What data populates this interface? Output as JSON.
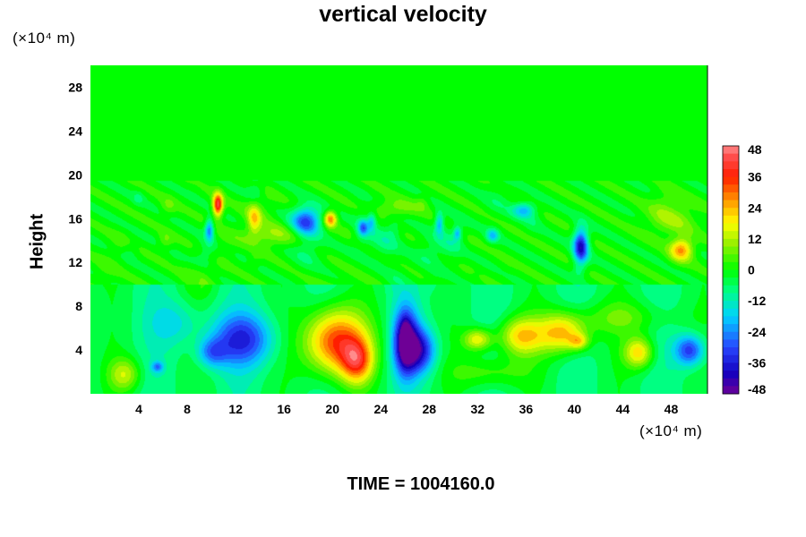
{
  "chart_data": {
    "type": "heatmap",
    "title": "vertical velocity",
    "ylabel": "Height",
    "xlabel": "",
    "x_unit_label": "(×10⁴ m)",
    "y_unit_label": "(×10⁴ m)",
    "footer": "TIME = 1004160.0",
    "xlim": [
      0,
      51
    ],
    "ylim": [
      0,
      30
    ],
    "x_ticks": [
      4,
      8,
      12,
      16,
      20,
      24,
      28,
      32,
      36,
      40,
      44,
      48
    ],
    "y_ticks": [
      4,
      8,
      12,
      16,
      20,
      24,
      28
    ],
    "colorbar": {
      "min": -48,
      "max": 48,
      "labels": [
        48,
        36,
        24,
        12,
        0,
        -12,
        -24,
        -36,
        -48
      ],
      "placement": "right"
    },
    "features": [
      {
        "x": 2.8,
        "y": 1.8,
        "rx": 1.3,
        "ry": 1.5,
        "value": 18
      },
      {
        "x": 5.5,
        "y": 2.5,
        "rx": 0.5,
        "ry": 0.5,
        "value": -18
      },
      {
        "x": 12.5,
        "y": 5.0,
        "rx": 2.6,
        "ry": 2.4,
        "value": -27
      },
      {
        "x": 10.0,
        "y": 3.8,
        "rx": 1.2,
        "ry": 1.3,
        "value": -18
      },
      {
        "x": 20.2,
        "y": 4.8,
        "rx": 2.5,
        "ry": 3.0,
        "value": 42
      },
      {
        "x": 22.0,
        "y": 3.0,
        "rx": 1.3,
        "ry": 2.0,
        "value": 30
      },
      {
        "x": 26.0,
        "y": 4.8,
        "rx": 1.0,
        "ry": 3.0,
        "value": -40
      },
      {
        "x": 26.0,
        "y": 5.0,
        "rx": 0.35,
        "ry": 1.5,
        "value": -20
      },
      {
        "x": 27.2,
        "y": 4.0,
        "rx": 1.3,
        "ry": 2.0,
        "value": -30
      },
      {
        "x": 32.0,
        "y": 5.0,
        "rx": 1.2,
        "ry": 1.0,
        "value": 24
      },
      {
        "x": 35.5,
        "y": 5.3,
        "rx": 1.8,
        "ry": 1.7,
        "value": 26
      },
      {
        "x": 39.0,
        "y": 5.6,
        "rx": 2.0,
        "ry": 1.8,
        "value": 30
      },
      {
        "x": 40.3,
        "y": 4.8,
        "rx": 0.8,
        "ry": 0.7,
        "value": 18
      },
      {
        "x": 45.3,
        "y": 3.8,
        "rx": 1.2,
        "ry": 1.4,
        "value": 26
      },
      {
        "x": 49.5,
        "y": 4.0,
        "rx": 1.2,
        "ry": 1.4,
        "value": -28
      },
      {
        "x": 44.0,
        "y": 7.0,
        "rx": 4.0,
        "ry": 1.5,
        "value": 10
      },
      {
        "x": 33.0,
        "y": 2.0,
        "rx": 3.0,
        "ry": 1.5,
        "value": 12
      },
      {
        "x": 7.0,
        "y": 6.5,
        "rx": 2.0,
        "ry": 2.0,
        "value": -10
      },
      {
        "x": 10.5,
        "y": 17.3,
        "rx": 0.4,
        "ry": 1.0,
        "value": 44
      },
      {
        "x": 9.8,
        "y": 15.0,
        "rx": 0.35,
        "ry": 1.0,
        "value": -25
      },
      {
        "x": 13.5,
        "y": 16.0,
        "rx": 0.5,
        "ry": 1.2,
        "value": 18
      },
      {
        "x": 17.8,
        "y": 15.8,
        "rx": 1.2,
        "ry": 1.3,
        "value": -32
      },
      {
        "x": 19.8,
        "y": 16.0,
        "rx": 0.5,
        "ry": 0.7,
        "value": 30
      },
      {
        "x": 22.5,
        "y": 15.2,
        "rx": 0.4,
        "ry": 0.7,
        "value": -22
      },
      {
        "x": 23.2,
        "y": 15.8,
        "rx": 0.35,
        "ry": 0.8,
        "value": -15
      },
      {
        "x": 28.8,
        "y": 15.6,
        "rx": 0.35,
        "ry": 1.0,
        "value": -20
      },
      {
        "x": 30.3,
        "y": 14.7,
        "rx": 0.3,
        "ry": 0.6,
        "value": -18
      },
      {
        "x": 33.2,
        "y": 14.5,
        "rx": 0.5,
        "ry": 0.6,
        "value": -18
      },
      {
        "x": 35.8,
        "y": 16.8,
        "rx": 0.9,
        "ry": 0.7,
        "value": -20
      },
      {
        "x": 40.5,
        "y": 13.5,
        "rx": 0.6,
        "ry": 1.6,
        "value": -40
      },
      {
        "x": 48.8,
        "y": 13.2,
        "rx": 0.9,
        "ry": 1.0,
        "value": 28
      },
      {
        "x": 48.0,
        "y": 16.0,
        "rx": 2.0,
        "ry": 1.5,
        "value": 10
      },
      {
        "x": 15.0,
        "y": 14.5,
        "rx": 2.5,
        "ry": 1.0,
        "value": 10
      },
      {
        "x": 25.0,
        "y": 17.0,
        "rx": 2.0,
        "ry": 0.8,
        "value": 8
      }
    ]
  }
}
